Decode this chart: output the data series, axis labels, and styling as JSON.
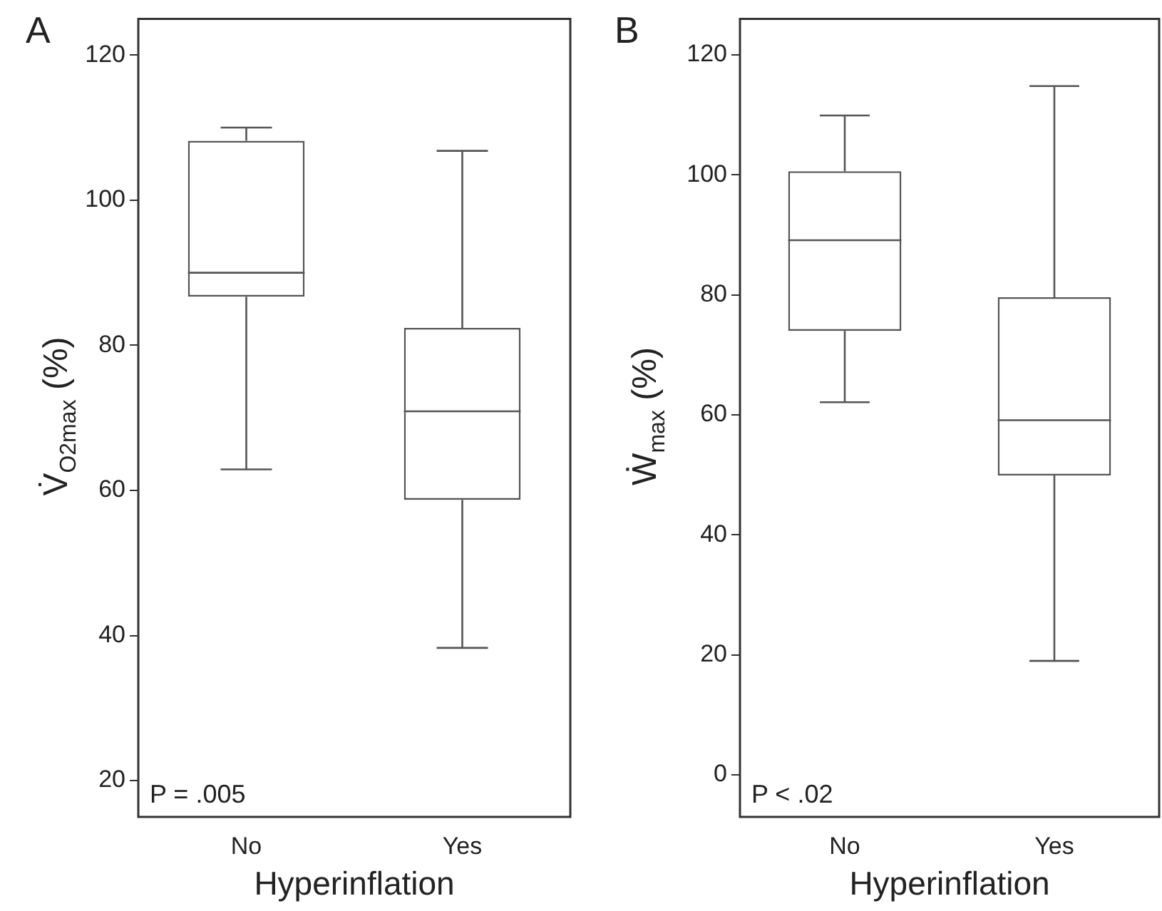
{
  "chart_data": [
    {
      "type": "box",
      "title": "A",
      "xlabel": "Hyperinflation",
      "ylabel": "V̇$_{O2max}$ (%)",
      "categories": [
        "No",
        "Yes"
      ],
      "color": "#555555",
      "boxes": [
        {
          "low": 62.9,
          "q1": 86.7,
          "median": 90,
          "q3": 108.2,
          "high": 110
        },
        {
          "low": 38.3,
          "q1": 58.7,
          "median": 70.9,
          "q3": 82.4,
          "high": 106.8
        }
      ],
      "ylim": [
        15,
        125
      ],
      "yticks": [
        20,
        40,
        60,
        80,
        100,
        120
      ],
      "annotations": [
        "P = .005"
      ]
    },
    {
      "type": "box",
      "title": "B",
      "xlabel": "Hyperinflation",
      "ylabel": "Ẇ$_{max}$ (%)",
      "categories": [
        "No",
        "Yes"
      ],
      "color": "#555555",
      "boxes": [
        {
          "low": 62.1,
          "q1": 74,
          "median": 89.1,
          "q3": 100.6,
          "high": 109.9
        },
        {
          "low": 19,
          "q1": 49.9,
          "median": 59.1,
          "q3": 79.6,
          "high": 114.8
        }
      ],
      "ylim": [
        -7,
        126
      ],
      "yticks": [
        0,
        20,
        40,
        60,
        80,
        100,
        120
      ],
      "annotations": [
        "P < .02"
      ]
    }
  ]
}
